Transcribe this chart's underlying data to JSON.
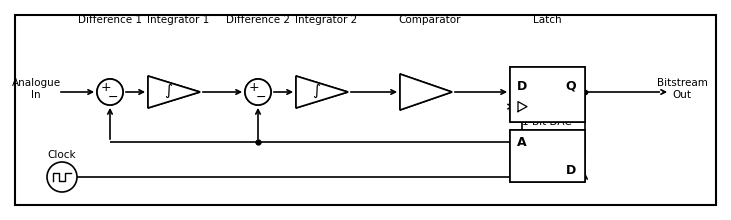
{
  "bg_color": "#ffffff",
  "border_color": "#000000",
  "labels": {
    "diff1": "Difference 1",
    "int1": "Integrator 1",
    "diff2": "Difference 2",
    "int2": "Integrator 2",
    "comp": "Comparator",
    "latch": "Latch",
    "dac": "1-Bit DAC",
    "clock": "Clock",
    "input": "Analogue\nIn",
    "output": "Bitstream\nOut"
  },
  "latch_D": "D",
  "latch_Q": "Q",
  "dac_A": "A",
  "dac_D": "D",
  "sum1_plus": "+",
  "sum1_minus": "_",
  "sum2_plus": "+",
  "sum2_minus": "_"
}
